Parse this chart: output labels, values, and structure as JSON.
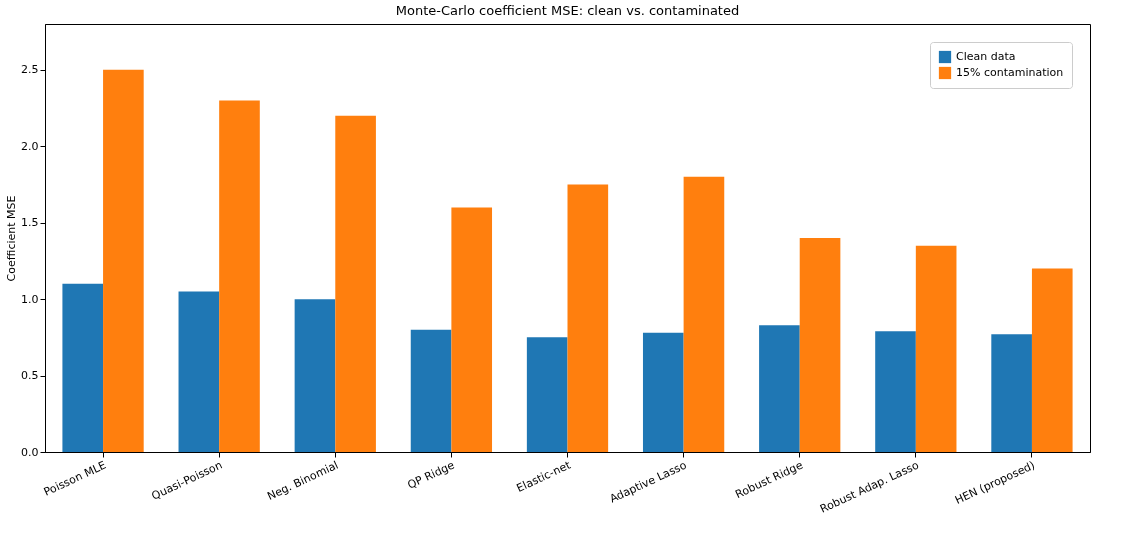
{
  "chart_data": {
    "type": "bar",
    "title": "Monte-Carlo coefficient MSE: clean vs. contaminated",
    "ylabel": "Coefficient MSE",
    "categories": [
      "Poisson MLE",
      "Quasi-Poisson",
      "Neg. Binomial",
      "QP Ridge",
      "Elastic-net",
      "Adaptive Lasso",
      "Robust Ridge",
      "Robust Adap. Lasso",
      "HEN (proposed)"
    ],
    "series": [
      {
        "name": "Clean data",
        "color": "#1f77b4",
        "values": [
          1.1,
          1.05,
          1.0,
          0.8,
          0.75,
          0.78,
          0.83,
          0.79,
          0.77
        ]
      },
      {
        "name": "15% contamination",
        "color": "#ff7f0e",
        "values": [
          2.5,
          2.3,
          2.2,
          1.6,
          1.75,
          1.8,
          1.4,
          1.35,
          1.2
        ]
      }
    ],
    "ylim": [
      0,
      2.8
    ],
    "yticks": [
      {
        "value": 0,
        "label": "0.0"
      },
      0.5,
      {
        "value": 1,
        "label": "1.0"
      },
      1.5,
      {
        "value": 2,
        "label": "2.0"
      },
      2.5
    ],
    "grid": false,
    "legend": "top right"
  }
}
